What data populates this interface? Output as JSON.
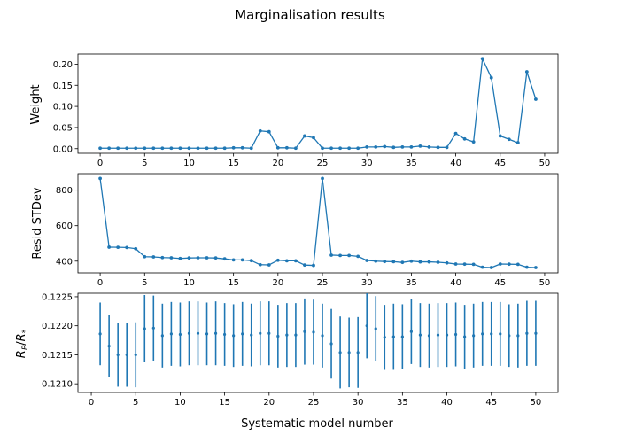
{
  "suptitle": "Marginalisation results",
  "colors": {
    "series": "#1f77b4",
    "axes": "#000000",
    "background": "#ffffff"
  },
  "chart_data": [
    {
      "type": "line",
      "ylabel": "Weight",
      "xlabel": "",
      "xlim": [
        -2.5,
        51.5
      ],
      "ylim": [
        -0.011,
        0.224
      ],
      "xticks": [
        0,
        5,
        10,
        15,
        20,
        25,
        30,
        35,
        40,
        45,
        50
      ],
      "yticks": [
        0.0,
        0.05,
        0.1,
        0.15,
        0.2
      ],
      "ytick_labels": [
        "0.00",
        "0.05",
        "0.10",
        "0.15",
        "0.20"
      ],
      "x": [
        0,
        1,
        2,
        3,
        4,
        5,
        6,
        7,
        8,
        9,
        10,
        11,
        12,
        13,
        14,
        15,
        16,
        17,
        18,
        19,
        20,
        21,
        22,
        23,
        24,
        25,
        26,
        27,
        28,
        29,
        30,
        31,
        32,
        33,
        34,
        35,
        36,
        37,
        38,
        39,
        40,
        41,
        42,
        43,
        44,
        45,
        46,
        47,
        48,
        49
      ],
      "y": [
        0.001,
        0.001,
        0.001,
        0.001,
        0.001,
        0.001,
        0.001,
        0.001,
        0.001,
        0.001,
        0.001,
        0.001,
        0.001,
        0.001,
        0.001,
        0.002,
        0.002,
        0.001,
        0.042,
        0.04,
        0.002,
        0.002,
        0.001,
        0.03,
        0.026,
        0.001,
        0.001,
        0.001,
        0.001,
        0.001,
        0.004,
        0.004,
        0.005,
        0.003,
        0.004,
        0.004,
        0.006,
        0.004,
        0.003,
        0.003,
        0.036,
        0.023,
        0.016,
        0.213,
        0.168,
        0.03,
        0.022,
        0.014,
        0.182,
        0.117
      ],
      "grid": false
    },
    {
      "type": "line",
      "ylabel": "Resid STDev",
      "xlabel": "",
      "xlim": [
        -2.5,
        51.5
      ],
      "ylim": [
        334,
        893
      ],
      "xticks": [
        0,
        5,
        10,
        15,
        20,
        25,
        30,
        35,
        40,
        45,
        50
      ],
      "yticks": [
        400,
        600,
        800
      ],
      "ytick_labels": [
        "400",
        "600",
        "800"
      ],
      "x": [
        0,
        1,
        2,
        3,
        4,
        5,
        6,
        7,
        8,
        9,
        10,
        11,
        12,
        13,
        14,
        15,
        16,
        17,
        18,
        19,
        20,
        21,
        22,
        23,
        24,
        25,
        26,
        27,
        28,
        29,
        30,
        31,
        32,
        33,
        34,
        35,
        36,
        37,
        38,
        39,
        40,
        41,
        42,
        43,
        44,
        45,
        46,
        47,
        48,
        49
      ],
      "y": [
        866,
        479,
        478,
        477,
        470,
        425,
        424,
        420,
        419,
        415,
        418,
        419,
        419,
        418,
        413,
        407,
        407,
        403,
        380,
        379,
        405,
        402,
        402,
        378,
        376,
        866,
        434,
        432,
        432,
        427,
        404,
        400,
        398,
        397,
        393,
        400,
        396,
        396,
        394,
        390,
        384,
        383,
        382,
        366,
        364,
        384,
        383,
        382,
        366,
        364
      ],
      "grid": false
    },
    {
      "type": "scatter",
      "errorbars": true,
      "ylabel": "Rp/R*",
      "xlabel": "Systematic model number",
      "xlim": [
        -1.5,
        52.5
      ],
      "ylim": [
        0.12085,
        0.12256
      ],
      "xticks": [
        0,
        5,
        10,
        15,
        20,
        25,
        30,
        35,
        40,
        45,
        50
      ],
      "yticks": [
        0.121,
        0.1215,
        0.122,
        0.1225
      ],
      "ytick_labels": [
        "0.1210",
        "0.1215",
        "0.1220",
        "0.1225"
      ],
      "x": [
        1,
        2,
        3,
        4,
        5,
        6,
        7,
        8,
        9,
        10,
        11,
        12,
        13,
        14,
        15,
        16,
        17,
        18,
        19,
        20,
        21,
        22,
        23,
        24,
        25,
        26,
        27,
        28,
        29,
        30,
        31,
        32,
        33,
        34,
        35,
        36,
        37,
        38,
        39,
        40,
        41,
        42,
        43,
        44,
        45,
        46,
        47,
        48,
        49,
        50
      ],
      "y": [
        0.12186,
        0.12165,
        0.1215,
        0.1215,
        0.1215,
        0.12195,
        0.12196,
        0.12183,
        0.12186,
        0.12185,
        0.12187,
        0.12187,
        0.12186,
        0.12187,
        0.12185,
        0.12183,
        0.12186,
        0.12184,
        0.12187,
        0.12187,
        0.12182,
        0.12184,
        0.12184,
        0.1219,
        0.12189,
        0.12183,
        0.12169,
        0.12154,
        0.12154,
        0.12154,
        0.122,
        0.12195,
        0.1218,
        0.12181,
        0.12181,
        0.1219,
        0.12184,
        0.12183,
        0.12184,
        0.12184,
        0.12185,
        0.12181,
        0.12183,
        0.12186,
        0.12186,
        0.12186,
        0.12183,
        0.12183,
        0.12187,
        0.12187
      ],
      "yerr": [
        0.00054,
        0.00053,
        0.00055,
        0.00055,
        0.00056,
        0.00058,
        0.00056,
        0.00055,
        0.00055,
        0.00055,
        0.00055,
        0.00055,
        0.00054,
        0.00055,
        0.00054,
        0.00054,
        0.00055,
        0.00054,
        0.00055,
        0.00055,
        0.00054,
        0.00055,
        0.00055,
        0.00057,
        0.00056,
        0.00055,
        0.0006,
        0.00062,
        0.0006,
        0.00061,
        0.00056,
        0.00056,
        0.00056,
        0.00057,
        0.00056,
        0.00056,
        0.00055,
        0.00055,
        0.00055,
        0.00055,
        0.00055,
        0.00055,
        0.00055,
        0.00055,
        0.00055,
        0.00055,
        0.00054,
        0.00055,
        0.00056,
        0.00056
      ],
      "grid": false
    }
  ]
}
